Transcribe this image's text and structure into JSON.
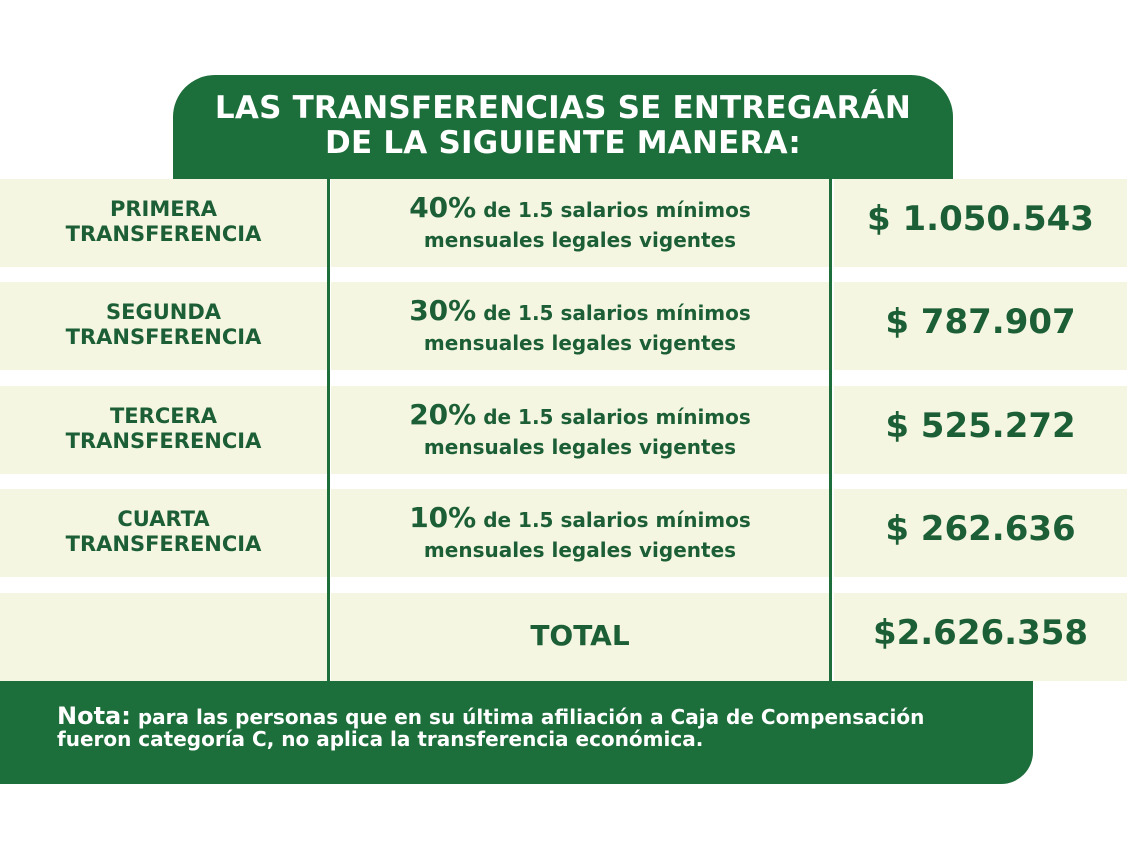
{
  "header": {
    "line1": "LAS TRANSFERENCIAS SE ENTREGARÁN",
    "line2": "DE LA SIGUIENTE MANERA:"
  },
  "rows": [
    {
      "label_line1": "PRIMERA",
      "label_line2": "TRANSFERENCIA",
      "percent": "40%",
      "desc_rest": "de 1.5 salarios mínimos",
      "desc_line2": "mensuales legales vigentes",
      "amount": "$ 1.050.543"
    },
    {
      "label_line1": "SEGUNDA",
      "label_line2": "TRANSFERENCIA",
      "percent": "30%",
      "desc_rest": "de 1.5 salarios mínimos",
      "desc_line2": "mensuales legales vigentes",
      "amount": "$ 787.907"
    },
    {
      "label_line1": "TERCERA",
      "label_line2": "TRANSFERENCIA",
      "percent": "20%",
      "desc_rest": "de 1.5 salarios mínimos",
      "desc_line2": "mensuales legales vigentes",
      "amount": "$ 525.272"
    },
    {
      "label_line1": "CUARTA",
      "label_line2": "TRANSFERENCIA",
      "percent": "10%",
      "desc_rest": "de 1.5 salarios mínimos",
      "desc_line2": "mensuales legales vigentes",
      "amount": "$ 262.636"
    }
  ],
  "total": {
    "label": "TOTAL",
    "amount": "$2.626.358"
  },
  "note": {
    "head": "Nota:",
    "line1": "para las personas que en su última afiliación a Caja de Compensación",
    "line2": "fueron categoría C, no aplica la transferencia económica."
  },
  "colors": {
    "primary_green": "#1c6e3a",
    "text_green": "#1c5e35",
    "cell_bg": "#f4f6e2"
  }
}
